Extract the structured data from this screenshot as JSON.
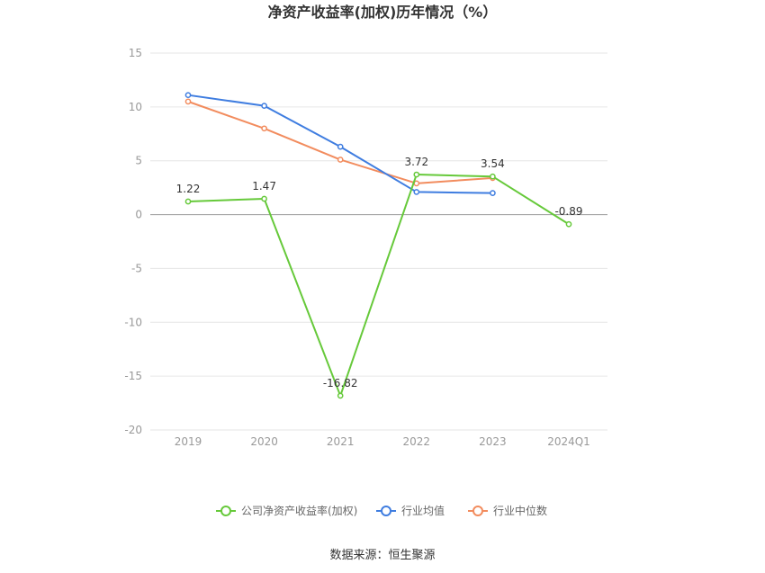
{
  "chart_data": {
    "type": "line",
    "title": "净资产收益率(加权)历年情况（%）",
    "categories": [
      "2019",
      "2020",
      "2021",
      "2022",
      "2023",
      "2024Q1"
    ],
    "y_ticks": [
      "15",
      "10",
      "5",
      "0",
      "-5",
      "-10",
      "-15",
      "-20"
    ],
    "ylim": [
      -20,
      15
    ],
    "grid": true,
    "legend_position": "bottom",
    "series": [
      {
        "name": "公司净资产收益率(加权)",
        "color": "#66c93a",
        "values": [
          1.22,
          1.47,
          -16.82,
          3.72,
          3.54,
          -0.89
        ],
        "labels": [
          "1.22",
          "1.47",
          "-16.82",
          "3.72",
          "3.54",
          "-0.89"
        ]
      },
      {
        "name": "行业均值",
        "color": "#3f7de0",
        "values": [
          11.1,
          10.1,
          6.3,
          2.1,
          2.0,
          null
        ]
      },
      {
        "name": "行业中位数",
        "color": "#f28c5e",
        "values": [
          10.5,
          8.0,
          5.1,
          2.9,
          3.4,
          null
        ]
      }
    ]
  },
  "source": "数据来源：恒生聚源"
}
